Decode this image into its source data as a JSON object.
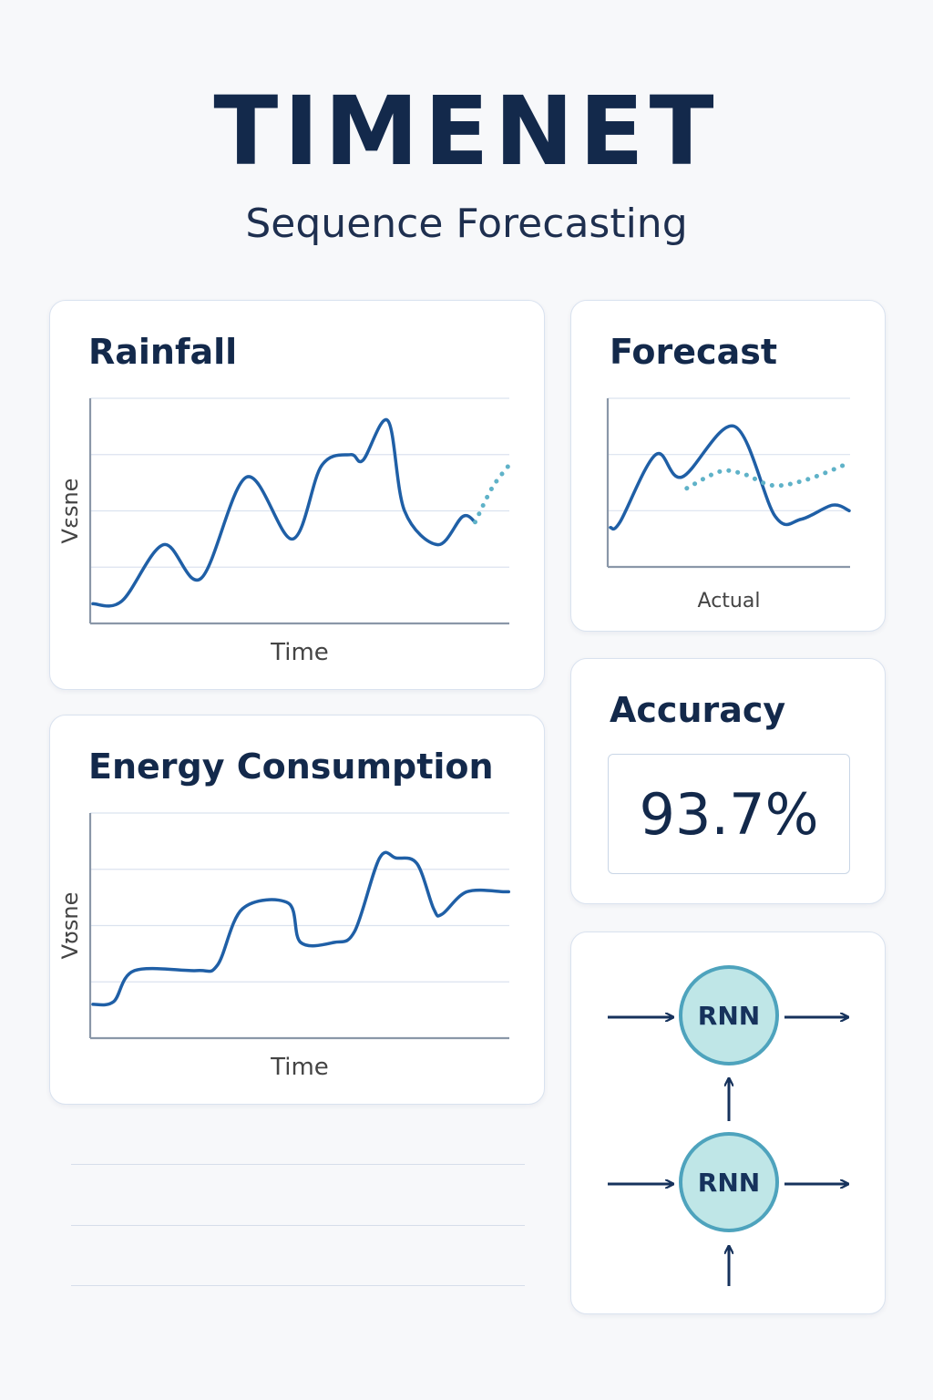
{
  "header": {
    "title": "TIMENET",
    "subtitle": "Sequence Forecasting"
  },
  "colors": {
    "line": "#1f5fa6",
    "forecast_dots": "#5fb2c8",
    "grid": "#dbe3ef",
    "axis": "#8a97a8",
    "node_fill": "#bfe6e7",
    "node_border": "#4ea3bd"
  },
  "cards": {
    "rainfall": {
      "title": "Rainfall",
      "xlabel": "Time",
      "ylabel": "Vɛsne"
    },
    "forecast": {
      "title": "Forecast",
      "xlabel": "Actual"
    },
    "energy": {
      "title": "Energy Consumption",
      "xlabel": "Time",
      "ylabel": "Vʊsne"
    },
    "accuracy": {
      "title": "Accuracy",
      "value": "93.7%"
    },
    "rnn": {
      "nodes": [
        "RNN",
        "RNN"
      ]
    }
  },
  "chart_data": [
    {
      "type": "line",
      "title": "Rainfall",
      "xlabel": "Time",
      "ylabel": "Vɛsne",
      "ylim": [
        0,
        4
      ],
      "grid": true,
      "series": [
        {
          "style": "solid",
          "x": [
            0,
            0.07,
            0.17,
            0.26,
            0.37,
            0.48,
            0.55,
            0.62,
            0.65,
            0.71,
            0.75,
            0.83,
            0.89,
            0.92
          ],
          "y": [
            0.35,
            0.4,
            1.4,
            0.8,
            2.6,
            1.5,
            2.8,
            3.0,
            2.9,
            3.6,
            2.0,
            1.4,
            1.9,
            1.8
          ]
        },
        {
          "style": "dotted",
          "x": [
            0.92,
            0.96,
            1.0
          ],
          "y": [
            1.8,
            2.4,
            2.8
          ]
        }
      ]
    },
    {
      "type": "line",
      "title": "Forecast",
      "xlabel": "Actual",
      "ylim": [
        0,
        3
      ],
      "grid": true,
      "series": [
        {
          "style": "solid",
          "x": [
            0,
            0.04,
            0.19,
            0.3,
            0.52,
            0.69,
            0.8,
            0.93,
            1.0
          ],
          "y": [
            0.7,
            0.8,
            2.0,
            1.6,
            2.5,
            0.9,
            0.85,
            1.1,
            1.0
          ]
        },
        {
          "style": "dotted",
          "x": [
            0.32,
            0.46,
            0.56,
            0.68,
            0.82,
            1.0
          ],
          "y": [
            1.4,
            1.7,
            1.65,
            1.45,
            1.55,
            1.85
          ]
        }
      ]
    },
    {
      "type": "line",
      "title": "Energy Consumption",
      "xlabel": "Time",
      "ylabel": "Vʊsne",
      "ylim": [
        0,
        4
      ],
      "grid": true,
      "series": [
        {
          "style": "solid",
          "x": [
            0,
            0.05,
            0.1,
            0.25,
            0.3,
            0.36,
            0.47,
            0.5,
            0.58,
            0.63,
            0.69,
            0.73,
            0.78,
            0.82,
            0.84,
            0.9,
            0.99,
            1.0
          ],
          "y": [
            0.6,
            0.65,
            1.2,
            1.2,
            1.3,
            2.3,
            2.4,
            1.7,
            1.7,
            1.9,
            3.2,
            3.2,
            3.1,
            2.3,
            2.2,
            2.6,
            2.6,
            2.6
          ]
        }
      ]
    }
  ]
}
